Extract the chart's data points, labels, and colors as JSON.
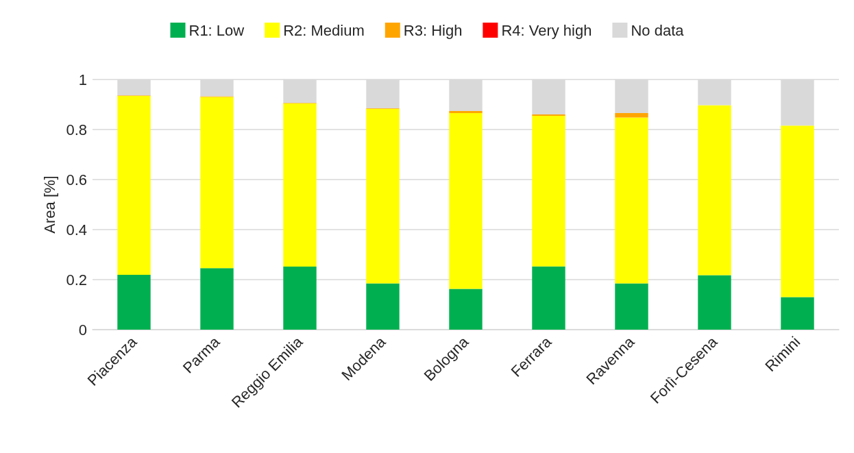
{
  "chart_data": {
    "type": "bar",
    "stacked": true,
    "ylabel": "Area [%]",
    "categories": [
      "Piacenza",
      "Parma",
      "Reggio Emilia",
      "Modena",
      "Bologna",
      "Ferrara",
      "Ravenna",
      "Forlì-Cesena",
      "Rimini"
    ],
    "series": [
      {
        "name": "R1: Low",
        "color": "#00b050",
        "values": [
          0.219,
          0.246,
          0.252,
          0.185,
          0.163,
          0.253,
          0.185,
          0.218,
          0.13
        ]
      },
      {
        "name": "R2: Medium",
        "color": "#ffff00",
        "values": [
          0.715,
          0.684,
          0.652,
          0.698,
          0.703,
          0.602,
          0.663,
          0.679,
          0.686
        ]
      },
      {
        "name": "R3: High",
        "color": "#ffa500",
        "values": [
          0.002,
          0.003,
          0.002,
          0.002,
          0.008,
          0.005,
          0.018,
          0,
          0
        ]
      },
      {
        "name": "R4: Very high",
        "color": "#ff0000",
        "values": [
          0,
          0,
          0,
          0,
          0,
          0,
          0,
          0,
          0
        ]
      },
      {
        "name": "No data",
        "color": "#d9d9d9",
        "values": [
          0.064,
          0.067,
          0.094,
          0.115,
          0.126,
          0.14,
          0.134,
          0.103,
          0.184
        ]
      }
    ],
    "ylim": [
      0,
      1
    ],
    "yticks": [
      0,
      0.2,
      0.4,
      0.6,
      0.8,
      1
    ],
    "grid": "y",
    "legend": "top"
  }
}
